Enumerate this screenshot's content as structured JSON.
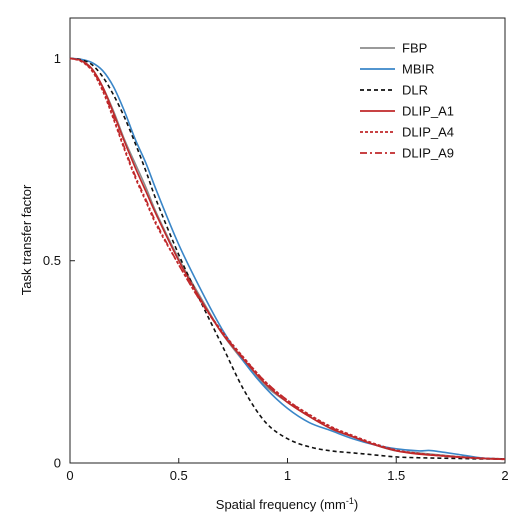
{
  "chart_data": {
    "type": "line",
    "xlabel": "Spatial frequency (mm",
    "xlabel_sup": "-1",
    "xlabel_suffix": ")",
    "ylabel": "Task transfer factor",
    "xlim": [
      0,
      2
    ],
    "ylim": [
      0,
      1.1
    ],
    "xticks": [
      0,
      0.5,
      1,
      1.5,
      2
    ],
    "xtick_labels": [
      "0",
      "0.5",
      "1",
      "1.5",
      "2"
    ],
    "yticks": [
      0,
      0.5,
      1
    ],
    "ytick_labels": [
      "0",
      "0.5",
      "1"
    ],
    "grid": false,
    "legend_position": "top-right",
    "series": [
      {
        "name": "FBP",
        "color": "#8c8c8c",
        "dash": "solid",
        "x": [
          0,
          0.05,
          0.1,
          0.15,
          0.2,
          0.25,
          0.3,
          0.35,
          0.4,
          0.5,
          0.6,
          0.7,
          0.8,
          0.9,
          1.0,
          1.1,
          1.2,
          1.3,
          1.4,
          1.5,
          1.6,
          1.7,
          1.8,
          1.9,
          2.0
        ],
        "y": [
          1,
          0.995,
          0.975,
          0.93,
          0.87,
          0.8,
          0.74,
          0.68,
          0.615,
          0.505,
          0.41,
          0.32,
          0.25,
          0.19,
          0.15,
          0.115,
          0.085,
          0.065,
          0.045,
          0.03,
          0.025,
          0.02,
          0.015,
          0.012,
          0.01
        ]
      },
      {
        "name": "MBIR",
        "color": "#3a86c8",
        "dash": "solid",
        "x": [
          0,
          0.05,
          0.1,
          0.15,
          0.2,
          0.25,
          0.3,
          0.35,
          0.4,
          0.5,
          0.6,
          0.7,
          0.8,
          0.9,
          1.0,
          1.1,
          1.2,
          1.3,
          1.4,
          1.5,
          1.6,
          1.65,
          1.7,
          1.8,
          1.9,
          2.0
        ],
        "y": [
          1,
          0.998,
          0.99,
          0.97,
          0.93,
          0.87,
          0.8,
          0.74,
          0.67,
          0.54,
          0.43,
          0.33,
          0.25,
          0.185,
          0.135,
          0.1,
          0.08,
          0.06,
          0.045,
          0.035,
          0.03,
          0.031,
          0.028,
          0.02,
          0.012,
          0.01
        ]
      },
      {
        "name": "DLR",
        "color": "#111111",
        "dash": "4,3",
        "x": [
          0,
          0.05,
          0.1,
          0.15,
          0.2,
          0.25,
          0.3,
          0.35,
          0.4,
          0.5,
          0.6,
          0.7,
          0.8,
          0.9,
          1.0,
          1.1,
          1.2,
          1.3,
          1.4,
          1.5,
          1.6,
          1.7,
          1.8,
          1.9,
          2.0
        ],
        "y": [
          1,
          0.997,
          0.985,
          0.955,
          0.91,
          0.855,
          0.79,
          0.72,
          0.645,
          0.515,
          0.4,
          0.29,
          0.18,
          0.1,
          0.06,
          0.04,
          0.03,
          0.025,
          0.02,
          0.015,
          0.013,
          0.012,
          0.011,
          0.01,
          0.01
        ]
      },
      {
        "name": "DLIP_A1",
        "color": "#c0282a",
        "dash": "solid",
        "x": [
          0,
          0.05,
          0.1,
          0.15,
          0.2,
          0.25,
          0.3,
          0.35,
          0.4,
          0.5,
          0.6,
          0.7,
          0.8,
          0.9,
          1.0,
          1.1,
          1.2,
          1.3,
          1.4,
          1.5,
          1.6,
          1.7,
          1.8,
          1.9,
          2.0
        ],
        "y": [
          1,
          0.995,
          0.975,
          0.93,
          0.865,
          0.795,
          0.73,
          0.67,
          0.61,
          0.5,
          0.405,
          0.32,
          0.255,
          0.195,
          0.15,
          0.115,
          0.085,
          0.065,
          0.045,
          0.03,
          0.022,
          0.018,
          0.014,
          0.011,
          0.009
        ]
      },
      {
        "name": "DLIP_A4",
        "color": "#c0282a",
        "dash": "3,2",
        "x": [
          0,
          0.05,
          0.1,
          0.15,
          0.2,
          0.25,
          0.3,
          0.35,
          0.4,
          0.5,
          0.6,
          0.7,
          0.8,
          0.9,
          1.0,
          1.1,
          1.2,
          1.3,
          1.4,
          1.5,
          1.6,
          1.7,
          1.8,
          1.9,
          2.0
        ],
        "y": [
          1,
          0.993,
          0.97,
          0.92,
          0.85,
          0.775,
          0.705,
          0.645,
          0.585,
          0.49,
          0.4,
          0.325,
          0.26,
          0.2,
          0.155,
          0.12,
          0.09,
          0.068,
          0.048,
          0.032,
          0.024,
          0.019,
          0.015,
          0.012,
          0.01
        ]
      },
      {
        "name": "DLIP_A9",
        "color": "#c0282a",
        "dash": "7,3,2,3",
        "x": [
          0,
          0.05,
          0.1,
          0.15,
          0.2,
          0.25,
          0.3,
          0.35,
          0.4,
          0.5,
          0.6,
          0.7,
          0.8,
          0.9,
          1.0,
          1.1,
          1.2,
          1.3,
          1.4,
          1.5,
          1.6,
          1.7,
          1.8,
          1.9,
          2.0
        ],
        "y": [
          1,
          0.994,
          0.972,
          0.925,
          0.855,
          0.78,
          0.71,
          0.65,
          0.59,
          0.49,
          0.4,
          0.322,
          0.258,
          0.2,
          0.155,
          0.118,
          0.088,
          0.066,
          0.046,
          0.031,
          0.023,
          0.018,
          0.014,
          0.011,
          0.009
        ]
      }
    ]
  }
}
